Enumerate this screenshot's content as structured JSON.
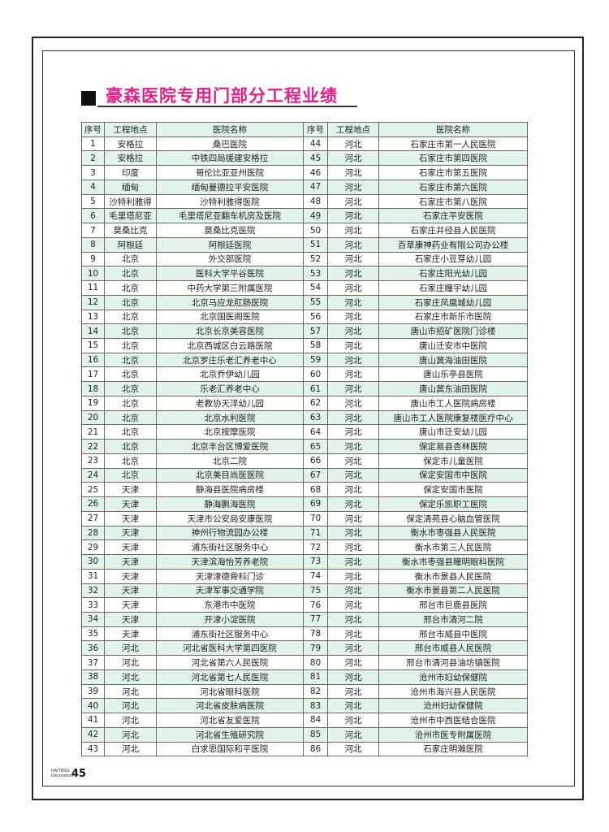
{
  "title": "豪森医院专用门部分工程业绩",
  "headers": [
    "序号",
    "工程地点",
    "医院名称",
    "序号",
    "工程地点",
    "医院名称"
  ],
  "rows": [
    [
      [
        "1",
        "安格拉",
        "桑巴医院"
      ],
      [
        "44",
        "河北",
        "石家庄市第一人民医院"
      ]
    ],
    [
      [
        "2",
        "安格拉",
        "中铁四局援建安格拉"
      ],
      [
        "45",
        "河北",
        "石家庄市第四医院"
      ]
    ],
    [
      [
        "3",
        "印度",
        "哥伦比亚亚州医院"
      ],
      [
        "46",
        "河北",
        "石家庄市第五医院"
      ]
    ],
    [
      [
        "4",
        "缅甸",
        "缅甸曼德拉平安医院"
      ],
      [
        "47",
        "河北",
        "石家庄市第六医院"
      ]
    ],
    [
      [
        "5",
        "沙特利雅得",
        "沙特利雅得医院"
      ],
      [
        "48",
        "河北",
        "石家庄市第八医院"
      ]
    ],
    [
      [
        "6",
        "毛里塔尼亚",
        "毛里塔尼亚翻车机房及医院"
      ],
      [
        "49",
        "河北",
        "石家庄平安医院"
      ]
    ],
    [
      [
        "7",
        "莫桑比克",
        "莫桑比克医院"
      ],
      [
        "50",
        "河北",
        "石家庄井径县人民医院"
      ]
    ],
    [
      [
        "8",
        "阿根廷",
        "阿根廷医院"
      ],
      [
        "51",
        "河北",
        "百草康神药业有限公司办公楼"
      ]
    ],
    [
      [
        "9",
        "北京",
        "外交部医院"
      ],
      [
        "52",
        "河北",
        "石家庄小豆芽幼儿园"
      ]
    ],
    [
      [
        "10",
        "北京",
        "医科大学平谷医院"
      ],
      [
        "53",
        "河北",
        "石家庄阳光幼儿园"
      ]
    ],
    [
      [
        "11",
        "北京",
        "中药大学第三附属医院"
      ],
      [
        "54",
        "河北",
        "石家庄瞳宇幼儿园"
      ]
    ],
    [
      [
        "12",
        "北京",
        "北京马应龙肛肠医院"
      ],
      [
        "55",
        "河北",
        "石家庄凤凰城幼儿园"
      ]
    ],
    [
      [
        "13",
        "北京",
        "北京国医阁医院"
      ],
      [
        "56",
        "河北",
        "石家庄市新乐市医院"
      ]
    ],
    [
      [
        "14",
        "北京",
        "北京长京美容医院"
      ],
      [
        "57",
        "河北",
        "唐山市招矿医院门诊楼"
      ]
    ],
    [
      [
        "15",
        "北京",
        "北京西城区白云路医院"
      ],
      [
        "58",
        "河北",
        "唐山迁安市中医院"
      ]
    ],
    [
      [
        "16",
        "北京",
        "北京罗庄乐老汇养老中心"
      ],
      [
        "59",
        "河北",
        "唐山冀海油田医院"
      ]
    ],
    [
      [
        "17",
        "北京",
        "北京乔伊幼儿园"
      ],
      [
        "60",
        "河北",
        "唐山乐亭县医院"
      ]
    ],
    [
      [
        "18",
        "北京",
        "乐老汇养老中心"
      ],
      [
        "61",
        "河北",
        "唐山冀东油田医院"
      ]
    ],
    [
      [
        "19",
        "北京",
        "老教协天洋幼儿园"
      ],
      [
        "62",
        "河北",
        "唐山市工人医院病房楼"
      ]
    ],
    [
      [
        "20",
        "北京",
        "北京水利医院"
      ],
      [
        "63",
        "河北",
        "唐山市工人医院康复楼医疗中心"
      ]
    ],
    [
      [
        "21",
        "北京",
        "北京按摩医院"
      ],
      [
        "64",
        "河北",
        "唐山市迁安幼儿园"
      ]
    ],
    [
      [
        "22",
        "北京",
        "北京丰台区博爱医院"
      ],
      [
        "65",
        "河北",
        "保定易县杏林医院"
      ]
    ],
    [
      [
        "23",
        "北京",
        "北京二院"
      ],
      [
        "66",
        "河北",
        "保定市儿童医院"
      ]
    ],
    [
      [
        "24",
        "北京",
        "北京美目尚医医院"
      ],
      [
        "67",
        "河北",
        "保定安国市中医院"
      ]
    ],
    [
      [
        "25",
        "天津",
        "静海县医院病房楼"
      ],
      [
        "68",
        "河北",
        "保定安国市医院"
      ]
    ],
    [
      [
        "26",
        "天津",
        "静海鹏海医院"
      ],
      [
        "69",
        "河北",
        "保定乐凯职工医院"
      ]
    ],
    [
      [
        "27",
        "天津",
        "天津市公安局安康医院"
      ],
      [
        "70",
        "河北",
        "保定清苑县心脑血管医院"
      ]
    ],
    [
      [
        "28",
        "天津",
        "神州行物流园办公楼"
      ],
      [
        "71",
        "河北",
        "衡水市枣强县人民医院"
      ]
    ],
    [
      [
        "29",
        "天津",
        "浦东街社区服务中心"
      ],
      [
        "72",
        "河北",
        "衡水市第三人民医院"
      ]
    ],
    [
      [
        "30",
        "天津",
        "天津滨海怡芳养老院"
      ],
      [
        "73",
        "河北",
        "衡水市枣强县瞳明眼科医院"
      ]
    ],
    [
      [
        "31",
        "天津",
        "天津津德骨科门诊"
      ],
      [
        "74",
        "河北",
        "衡水市景县人民医院"
      ]
    ],
    [
      [
        "32",
        "天津",
        "天津军事交通学院"
      ],
      [
        "75",
        "河北",
        "衡水市景县第二人民医院"
      ]
    ],
    [
      [
        "33",
        "天津",
        "东港市中医院"
      ],
      [
        "76",
        "河北",
        "邢台市巨鹿县医院"
      ]
    ],
    [
      [
        "34",
        "天津",
        "开津小淀医院"
      ],
      [
        "77",
        "河北",
        "邢台市清河二院"
      ]
    ],
    [
      [
        "35",
        "天津",
        "浦东街社区服务中心"
      ],
      [
        "78",
        "河北",
        "邢台市威县中医院"
      ]
    ],
    [
      [
        "36",
        "河北",
        "河北省医科大学第四医院"
      ],
      [
        "79",
        "河北",
        "邢台市威县人民医院"
      ]
    ],
    [
      [
        "37",
        "河北",
        "河北省第六人民医院"
      ],
      [
        "80",
        "河北",
        "邢台市清河县油坊镇医院"
      ]
    ],
    [
      [
        "38",
        "河北",
        "河北省第七人民医院"
      ],
      [
        "81",
        "河北",
        "沧州市妇幼保健院"
      ]
    ],
    [
      [
        "39",
        "河北",
        "河北省眼科医院"
      ],
      [
        "82",
        "河北",
        "沧州市海兴县人民医院"
      ]
    ],
    [
      [
        "40",
        "河北",
        "河北省皮肤病医院"
      ],
      [
        "83",
        "河北",
        "沧州妇幼保健院"
      ]
    ],
    [
      [
        "41",
        "河北",
        "河北省友爱医院"
      ],
      [
        "84",
        "河北",
        "沧州市中西医结合医院"
      ]
    ],
    [
      [
        "42",
        "河北",
        "河北省生殖研究院"
      ],
      [
        "85",
        "河北",
        "沧州市医专附属医院"
      ]
    ],
    [
      [
        "43",
        "河北",
        "白求恩国际和平医院"
      ],
      [
        "86",
        "河北",
        "石家庄明瀚医院"
      ]
    ]
  ],
  "footer": {
    "brand_line1": "HAITENG",
    "brand_line2": "Decoration",
    "page_number": "45"
  },
  "colors": {
    "title": "#e0218a",
    "row_stripe": "#e2f4e8"
  }
}
